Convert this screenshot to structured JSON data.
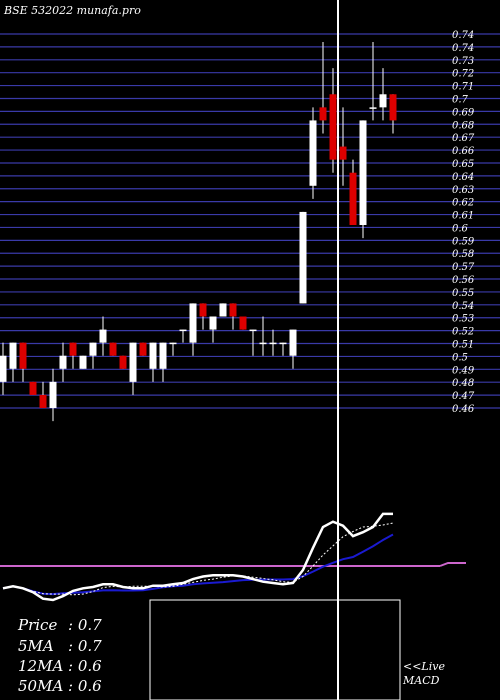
{
  "header": {
    "title": "BSE 532022  munafa.pro"
  },
  "colors": {
    "background": "#000000",
    "grid": "#3a3aa8",
    "bull": "#ffffff",
    "bear": "#dd0000",
    "text": "#ffffff",
    "ma_short": "#ffffff",
    "ma_long": "#1a1ad0",
    "signal": "#cc66cc"
  },
  "stats": [
    {
      "label": "Price",
      "value": ": 0.7"
    },
    {
      "label": "5MA",
      "value": ": 0.7"
    },
    {
      "label": "12MA",
      "value": ": 0.6"
    },
    {
      "label": "50MA",
      "value": ": 0.6"
    }
  ],
  "macd_label": {
    "line1": "<<Live",
    "line2": "MACD"
  },
  "chart_data": {
    "type": "candlestick",
    "price_ticks": [
      "0.74",
      "0.74",
      "0.73",
      "0.72",
      "0.71",
      "0.7",
      "0.69",
      "0.68",
      "0.67",
      "0.66",
      "0.65",
      "0.64",
      "0.63",
      "0.62",
      "0.61",
      "0.6",
      "0.59",
      "0.58",
      "0.57",
      "0.56",
      "0.55",
      "0.54",
      "0.53",
      "0.52",
      "0.51",
      "0.5",
      "0.49",
      "0.48",
      "0.47",
      "0.46"
    ],
    "ylim": [
      0.46,
      0.74
    ],
    "candles": [
      {
        "o": 0.48,
        "h": 0.51,
        "l": 0.47,
        "c": 0.5
      },
      {
        "o": 0.49,
        "h": 0.51,
        "l": 0.48,
        "c": 0.51
      },
      {
        "o": 0.51,
        "h": 0.51,
        "l": 0.48,
        "c": 0.49
      },
      {
        "o": 0.48,
        "h": 0.48,
        "l": 0.47,
        "c": 0.47
      },
      {
        "o": 0.47,
        "h": 0.48,
        "l": 0.46,
        "c": 0.46
      },
      {
        "o": 0.46,
        "h": 0.49,
        "l": 0.45,
        "c": 0.48
      },
      {
        "o": 0.49,
        "h": 0.51,
        "l": 0.48,
        "c": 0.5
      },
      {
        "o": 0.51,
        "h": 0.51,
        "l": 0.49,
        "c": 0.5
      },
      {
        "o": 0.49,
        "h": 0.5,
        "l": 0.49,
        "c": 0.5
      },
      {
        "o": 0.5,
        "h": 0.51,
        "l": 0.49,
        "c": 0.51
      },
      {
        "o": 0.51,
        "h": 0.53,
        "l": 0.5,
        "c": 0.52
      },
      {
        "o": 0.51,
        "h": 0.51,
        "l": 0.5,
        "c": 0.5
      },
      {
        "o": 0.5,
        "h": 0.5,
        "l": 0.49,
        "c": 0.49
      },
      {
        "o": 0.48,
        "h": 0.51,
        "l": 0.47,
        "c": 0.51
      },
      {
        "o": 0.51,
        "h": 0.51,
        "l": 0.5,
        "c": 0.5
      },
      {
        "o": 0.49,
        "h": 0.51,
        "l": 0.48,
        "c": 0.51
      },
      {
        "o": 0.49,
        "h": 0.51,
        "l": 0.48,
        "c": 0.51
      },
      {
        "o": 0.51,
        "h": 0.51,
        "l": 0.5,
        "c": 0.51
      },
      {
        "o": 0.52,
        "h": 0.52,
        "l": 0.51,
        "c": 0.52
      },
      {
        "o": 0.51,
        "h": 0.54,
        "l": 0.5,
        "c": 0.54
      },
      {
        "o": 0.54,
        "h": 0.54,
        "l": 0.52,
        "c": 0.53
      },
      {
        "o": 0.52,
        "h": 0.53,
        "l": 0.51,
        "c": 0.53
      },
      {
        "o": 0.53,
        "h": 0.54,
        "l": 0.53,
        "c": 0.54
      },
      {
        "o": 0.54,
        "h": 0.54,
        "l": 0.52,
        "c": 0.53
      },
      {
        "o": 0.53,
        "h": 0.53,
        "l": 0.52,
        "c": 0.52
      },
      {
        "o": 0.52,
        "h": 0.52,
        "l": 0.5,
        "c": 0.52
      },
      {
        "o": 0.51,
        "h": 0.53,
        "l": 0.5,
        "c": 0.51
      },
      {
        "o": 0.51,
        "h": 0.52,
        "l": 0.5,
        "c": 0.51
      },
      {
        "o": 0.51,
        "h": 0.51,
        "l": 0.5,
        "c": 0.51
      },
      {
        "o": 0.5,
        "h": 0.52,
        "l": 0.49,
        "c": 0.52
      },
      {
        "o": 0.54,
        "h": 0.61,
        "l": 0.54,
        "c": 0.61
      },
      {
        "o": 0.63,
        "h": 0.69,
        "l": 0.62,
        "c": 0.68
      },
      {
        "o": 0.69,
        "h": 0.74,
        "l": 0.67,
        "c": 0.68
      },
      {
        "o": 0.7,
        "h": 0.72,
        "l": 0.64,
        "c": 0.65
      },
      {
        "o": 0.66,
        "h": 0.69,
        "l": 0.63,
        "c": 0.65
      },
      {
        "o": 0.64,
        "h": 0.65,
        "l": 0.6,
        "c": 0.6
      },
      {
        "o": 0.6,
        "h": 0.68,
        "l": 0.59,
        "c": 0.68
      },
      {
        "o": 0.69,
        "h": 0.74,
        "l": 0.68,
        "c": 0.69
      },
      {
        "o": 0.69,
        "h": 0.72,
        "l": 0.68,
        "c": 0.7
      },
      {
        "o": 0.7,
        "h": 0.7,
        "l": 0.67,
        "c": 0.68
      }
    ]
  }
}
